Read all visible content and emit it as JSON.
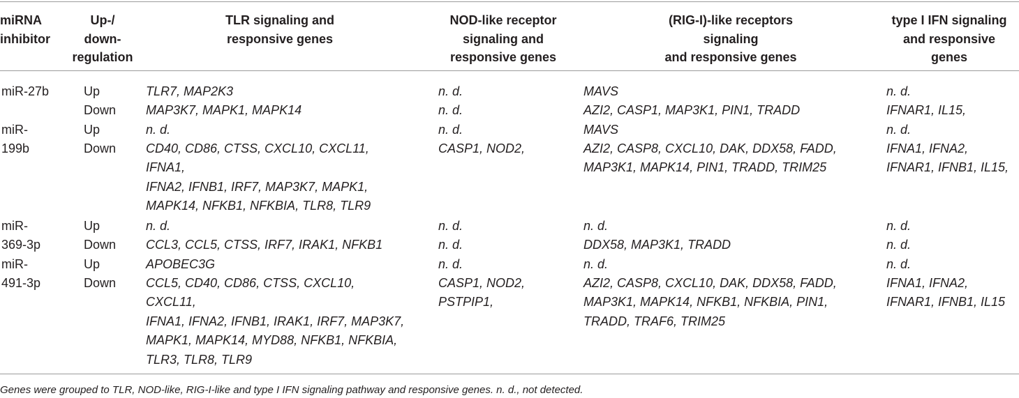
{
  "headers": {
    "mirna": "miRNA\ninhibitor",
    "updown": "Up-/\ndown-\nregulation",
    "tlr": "TLR signaling and\nresponsive genes",
    "nod": "NOD-like receptor\nsignaling and\nresponsive genes",
    "rig": "(RIG-I)-like receptors\nsignaling\nand responsive genes",
    "ifn": "type I IFN signaling\nand responsive\ngenes"
  },
  "rows": [
    {
      "mirna": "miR-27b",
      "reg": "Up",
      "tlr": "TLR7, MAP2K3",
      "nod": "n. d.",
      "rig": "MAVS",
      "ifn": "n. d."
    },
    {
      "mirna": "",
      "reg": "Down",
      "tlr": "MAP3K7, MAPK1, MAPK14",
      "nod": "n. d.",
      "rig": "AZI2, CASP1, MAP3K1, PIN1, TRADD",
      "ifn": "IFNAR1, IL15,"
    },
    {
      "mirna": "miR-\n199b",
      "reg": "Up",
      "tlr": "n. d.",
      "nod": "n. d.",
      "rig": "MAVS",
      "ifn": "n. d."
    },
    {
      "mirna": "",
      "reg": "Down",
      "tlr": "CD40, CD86, CTSS, CXCL10, CXCL11,\nIFNA1,\nIFNA2, IFNB1, IRF7, MAP3K7, MAPK1,\nMAPK14, NFKB1, NFKBIA, TLR8, TLR9",
      "nod": "CASP1, NOD2,",
      "rig": "AZI2, CASP8, CXCL10, DAK, DDX58, FADD,\nMAP3K1, MAPK14, PIN1, TRADD, TRIM25",
      "ifn": "IFNA1, IFNA2,\nIFNAR1, IFNB1, IL15,"
    },
    {
      "mirna": "miR-\n369-3p",
      "reg": "Up",
      "tlr": "n. d.",
      "nod": "n. d.",
      "rig": "n. d.",
      "ifn": "n. d."
    },
    {
      "mirna": "",
      "reg": "Down",
      "tlr": "CCL3, CCL5, CTSS, IRF7, IRAK1, NFKB1",
      "nod": "n. d.",
      "rig": "DDX58, MAP3K1, TRADD",
      "ifn": "n. d."
    },
    {
      "mirna": "miR-\n491-3p",
      "reg": "Up",
      "tlr": "APOBEC3G",
      "nod": "n. d.",
      "rig": "n. d.",
      "ifn": "n. d."
    },
    {
      "mirna": "",
      "reg": "Down",
      "tlr": "CCL5, CD40, CD86, CTSS, CXCL10,\nCXCL11,\n IFNA1, IFNA2, IFNB1, IRAK1, IRF7, MAP3K7,\nMAPK1, MAPK14, MYD88, NFKB1, NFKBIA,\nTLR3, TLR8, TLR9",
      "nod": "CASP1, NOD2,\nPSTPIP1,",
      "rig": "AZI2, CASP8, CXCL10, DAK, DDX58, FADD,\nMAP3K1, MAPK14, NFKB1, NFKBIA, PIN1,\nTRADD, TRAF6, TRIM25",
      "ifn": "IFNA1, IFNA2,\nIFNAR1, IFNB1, IL15"
    }
  ],
  "footnote": "Genes were grouped to TLR, NOD-like, RIG-I-like and type I IFN signaling pathway and responsive genes. n. d., not detected."
}
